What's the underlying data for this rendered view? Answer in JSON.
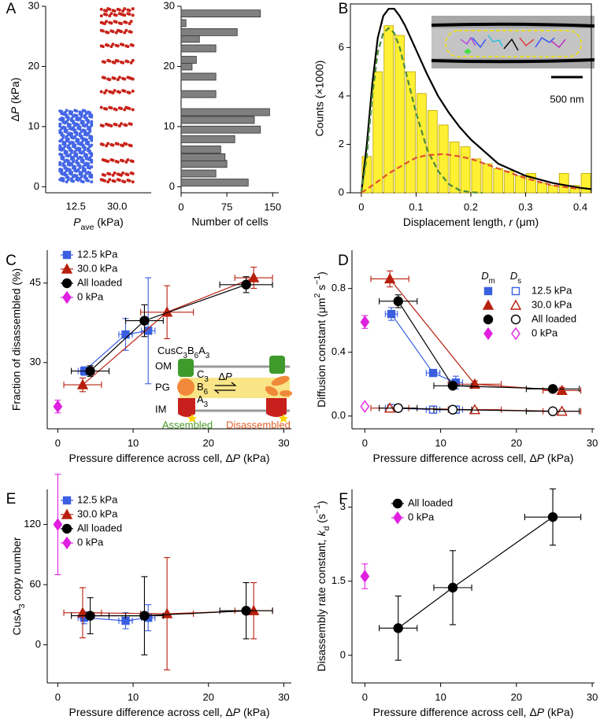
{
  "chart_data": [
    {
      "type": "scatter",
      "panel": "A",
      "ylabel": [
        {
          "text": "Δ"
        },
        {
          "text": "P",
          "style": "i"
        },
        {
          "text": " (kPa)"
        }
      ],
      "xlabel": [
        {
          "text": "P",
          "style": "i"
        },
        {
          "text": "ave",
          "style": "sub"
        },
        {
          "text": " (kPa)"
        }
      ],
      "categories": [
        "12.5",
        "30.0"
      ],
      "series": [
        {
          "color": "#4466e6",
          "values": [
            1,
            1.5,
            2,
            2.5,
            3,
            3.5,
            4,
            4.5,
            5,
            5.5,
            6,
            6.5,
            7,
            7.5,
            8,
            8.5,
            9,
            9.5,
            10,
            10.5,
            11,
            11.5,
            12,
            12.5
          ]
        },
        {
          "color": "#c8231a",
          "values": [
            1.0,
            2.1,
            4.3,
            7.0,
            10.3,
            13.0,
            15.8,
            18.0,
            20.8,
            23.5,
            25.8,
            27.3,
            28.6,
            29.4
          ]
        }
      ],
      "ylim": [
        -1,
        30
      ],
      "yticks": [
        0,
        10,
        20,
        30
      ]
    },
    {
      "type": "bar",
      "orientation": "horizontal",
      "xlabel": "Number of cells",
      "y": [
        0.7,
        2.2,
        3.8,
        4.9,
        6.2,
        7.9,
        9.5,
        11.1,
        12.4,
        15.4,
        18.3,
        20.0,
        21.1,
        23.0,
        24.6,
        25.7,
        27.2,
        28.8
      ],
      "values": [
        110,
        57,
        75,
        72,
        65,
        88,
        130,
        120,
        145,
        57,
        57,
        18,
        25,
        57,
        30,
        92,
        8,
        130
      ],
      "color": "#808080",
      "xlim": [
        0,
        160
      ],
      "xticks": [
        0,
        75,
        150
      ],
      "ylim": [
        -1,
        30
      ],
      "yticks": [
        0,
        10,
        20,
        30
      ]
    },
    {
      "type": "histogram",
      "panel": "B",
      "ylabel": "Counts (×1000)",
      "xlabel": [
        {
          "text": "Displacement length, "
        },
        {
          "text": "r",
          "style": "i"
        },
        {
          "text": " (μm)"
        }
      ],
      "bins": [
        0,
        0.02,
        0.04,
        0.06,
        0.08,
        0.1,
        0.12,
        0.14,
        0.16,
        0.18,
        0.2,
        0.22,
        0.24,
        0.26,
        0.28,
        0.3,
        0.32,
        0.34,
        0.36,
        0.38,
        0.4,
        0.42
      ],
      "values": [
        1.5,
        5.0,
        6.9,
        6.5,
        5.0,
        4.1,
        3.4,
        2.8,
        2.1,
        1.9,
        1.4,
        1.2,
        1.0,
        0.9,
        0.7,
        0.8,
        0.4,
        0.3,
        0.8,
        0.3,
        0.8
      ],
      "color": "#fff033",
      "lines": [
        {
          "color": "#000000",
          "dash": false,
          "x": [
            0,
            0.01,
            0.02,
            0.03,
            0.04,
            0.05,
            0.06,
            0.07,
            0.08,
            0.1,
            0.12,
            0.14,
            0.16,
            0.18,
            0.2,
            0.22,
            0.25,
            0.3,
            0.35,
            0.4,
            0.42
          ],
          "values": [
            0,
            2.0,
            4.5,
            6.4,
            7.3,
            7.6,
            7.6,
            7.3,
            6.9,
            5.9,
            4.9,
            4.0,
            3.3,
            2.7,
            2.2,
            1.8,
            1.2,
            0.7,
            0.4,
            0.2,
            0.15
          ]
        },
        {
          "color": "#4a8a3a",
          "dash": true,
          "x": [
            0,
            0.01,
            0.02,
            0.03,
            0.04,
            0.05,
            0.06,
            0.07,
            0.08,
            0.1,
            0.12,
            0.14,
            0.16,
            0.18,
            0.2,
            0.22
          ],
          "values": [
            0,
            1.5,
            4.0,
            5.8,
            6.6,
            6.8,
            6.6,
            6.0,
            5.1,
            3.3,
            1.8,
            0.9,
            0.35,
            0.1,
            0.02,
            0
          ]
        },
        {
          "color": "#e05030",
          "dash": true,
          "x": [
            0,
            0.02,
            0.05,
            0.08,
            0.1,
            0.12,
            0.15,
            0.18,
            0.2,
            0.25,
            0.3,
            0.35,
            0.4
          ],
          "values": [
            0,
            0.3,
            0.8,
            1.2,
            1.45,
            1.55,
            1.6,
            1.5,
            1.4,
            1.0,
            0.6,
            0.3,
            0.15
          ]
        }
      ],
      "scale_label": "500 nm",
      "xlim": [
        -0.02,
        0.42
      ],
      "xticks": [
        0,
        0.1,
        0.2,
        0.3,
        0.4
      ],
      "ylim": [
        0,
        7.8
      ],
      "yticks": [
        0,
        2,
        4,
        6
      ]
    },
    {
      "type": "errorbar",
      "panel": "C",
      "ylabel": "Fraction of disassembled (%)",
      "xlabel": [
        {
          "text": "Pressure difference across cell, Δ"
        },
        {
          "text": "P",
          "style": "i"
        },
        {
          "text": " (kPa)"
        }
      ],
      "legend": "upper left",
      "series": [
        {
          "name": "12.5 kPa",
          "color": "#3a5fe0",
          "marker": "square",
          "x": [
            3.5,
            9,
            12
          ],
          "values": [
            28.4,
            35.3,
            36
          ],
          "xerr": [
            0.8,
            0.9,
            0.9
          ],
          "yerr": [
            0.8,
            3,
            10
          ]
        },
        {
          "name": "30.0 kPa",
          "color": "#b8200e",
          "marker": "triangle",
          "x": [
            3.3,
            14.5,
            26
          ],
          "values": [
            25.8,
            39.5,
            46
          ],
          "xerr": [
            2.5,
            3.5,
            2.5
          ],
          "yerr": [
            1.3,
            5,
            2
          ]
        },
        {
          "name": "All loaded",
          "color": "#000000",
          "marker": "circle",
          "x": [
            4.3,
            11.5,
            25
          ],
          "values": [
            28.4,
            37.9,
            44.7
          ],
          "xerr": [
            2.5,
            2.5,
            3.5
          ],
          "yerr": [
            1,
            3,
            1.5
          ]
        },
        {
          "name": "0 kPa",
          "color": "#e020e0",
          "marker": "diamond",
          "x": [
            0
          ],
          "values": [
            21.7
          ],
          "yerr": [
            1.2
          ]
        }
      ],
      "inset": {
        "title": [
          {
            "text": "CusC"
          },
          {
            "text": "3",
            "style": "sub"
          },
          {
            "text": "B"
          },
          {
            "text": "6",
            "style": "sub"
          },
          {
            "text": "A"
          },
          {
            "text": "3",
            "style": "sub"
          }
        ],
        "layers": [
          "OM",
          "PG",
          "IM"
        ],
        "components": [
          [
            {
              "text": "C"
            },
            {
              "text": "3",
              "style": "sub"
            }
          ],
          [
            {
              "text": "B"
            },
            {
              "text": "6",
              "style": "sub"
            }
          ],
          [
            {
              "text": "A"
            },
            {
              "text": "3",
              "style": "sub"
            }
          ]
        ],
        "force": [
          {
            "text": "Δ"
          },
          {
            "text": "P",
            "style": "i"
          }
        ],
        "states": [
          "Assembled",
          "Disassembled"
        ]
      },
      "xlim": [
        -1.4,
        31
      ],
      "xticks": [
        0,
        10,
        20,
        30
      ],
      "ylim": [
        17.5,
        51.2
      ],
      "yticks": [
        30,
        45
      ]
    },
    {
      "type": "errorbar",
      "panel": "D",
      "ylabel": [
        {
          "text": "Diffusion constant (μm"
        },
        {
          "text": "2",
          "style": "sup"
        },
        {
          "text": " s"
        },
        {
          "text": "−1",
          "style": "sup"
        },
        {
          "text": ")"
        }
      ],
      "xlabel": [
        {
          "text": "Pressure difference across cell, Δ"
        },
        {
          "text": "P",
          "style": "i"
        },
        {
          "text": " (kPa)"
        }
      ],
      "legend": "upper right",
      "legend_headers": [
        [
          {
            "text": "D",
            "style": "i"
          },
          {
            "text": "m",
            "style": "sub"
          }
        ],
        [
          {
            "text": "D",
            "style": "i"
          },
          {
            "text": "s",
            "style": "sub"
          }
        ]
      ],
      "series": [
        {
          "name": "12.5 kPa",
          "color": "#3a5fe0",
          "marker": "square",
          "filled": true,
          "x": [
            3.5,
            9,
            12
          ],
          "values": [
            0.64,
            0.27,
            0.21
          ],
          "xerr": [
            0.8,
            0.9,
            0.9
          ],
          "yerr": [
            0.04,
            0.02,
            0.04
          ]
        },
        {
          "name": "30.0 kPa",
          "color": "#b8200e",
          "marker": "triangle",
          "filled": true,
          "x": [
            3.3,
            14.5,
            26
          ],
          "values": [
            0.86,
            0.2,
            0.16
          ],
          "xerr": [
            2.5,
            3.5,
            2.5
          ],
          "yerr": [
            0.05,
            0.02,
            0.02
          ]
        },
        {
          "name": "All loaded",
          "color": "#000000",
          "marker": "circle",
          "filled": true,
          "x": [
            4.4,
            11.6,
            24.8
          ],
          "values": [
            0.72,
            0.19,
            0.17
          ],
          "xerr": [
            2.5,
            2.5,
            3.5
          ],
          "yerr": [
            0.04,
            0.02,
            0.01
          ]
        },
        {
          "name": "0 kPa",
          "color": "#e020e0",
          "marker": "diamond",
          "filled": true,
          "x": [
            0
          ],
          "values": [
            0.59
          ],
          "yerr": [
            0.04
          ]
        },
        {
          "color": "#3a5fe0",
          "marker": "square",
          "filled": false,
          "x": [
            3.5,
            9,
            12
          ],
          "values": [
            0.05,
            0.04,
            0.04
          ],
          "xerr": [
            0.8,
            0.9,
            0.9
          ],
          "yerr": [
            0.01,
            0.01,
            0.01
          ]
        },
        {
          "color": "#b8200e",
          "marker": "triangle",
          "filled": false,
          "x": [
            3.3,
            14.5,
            26
          ],
          "values": [
            0.05,
            0.04,
            0.03
          ],
          "xerr": [
            2.5,
            3.5,
            2.5
          ],
          "yerr": [
            0.01,
            0.01,
            0.01
          ]
        },
        {
          "color": "#000000",
          "marker": "circle",
          "filled": false,
          "x": [
            4.4,
            11.6,
            24.8
          ],
          "values": [
            0.05,
            0.04,
            0.03
          ],
          "xerr": [
            2.5,
            2.5,
            3.5
          ],
          "yerr": [
            0.01,
            0.01,
            0.01
          ]
        },
        {
          "color": "#e020e0",
          "marker": "diamond",
          "filled": false,
          "x": [
            0
          ],
          "values": [
            0.06
          ],
          "yerr": [
            0.01
          ]
        }
      ],
      "xlim": [
        -1.7,
        30.3
      ],
      "xticks": [
        0,
        10,
        20,
        30
      ],
      "ylim": [
        -0.08,
        1.04
      ],
      "yticks": [
        {
          "value": 0,
          "label": "0.0"
        },
        0.4,
        0.8
      ]
    },
    {
      "type": "errorbar",
      "panel": "E",
      "ylabel": [
        {
          "text": "CusA"
        },
        {
          "text": "3",
          "style": "sub"
        },
        {
          "text": " copy number"
        }
      ],
      "xlabel": [
        {
          "text": "Pressure difference across cell, Δ"
        },
        {
          "text": "P",
          "style": "i"
        },
        {
          "text": " (kPa)"
        }
      ],
      "legend": "upper left",
      "series": [
        {
          "name": "12.5 kPa",
          "color": "#3a5fe0",
          "marker": "square",
          "x": [
            3.5,
            9,
            12
          ],
          "values": [
            27,
            24,
            27
          ],
          "xerr": [
            0.8,
            0.9,
            0.9
          ],
          "yerr": [
            6,
            8,
            13
          ]
        },
        {
          "name": "30.0 kPa",
          "color": "#b8200e",
          "marker": "triangle",
          "x": [
            3.3,
            14.5,
            26
          ],
          "values": [
            32,
            31,
            34
          ],
          "xerr": [
            2.5,
            3.5,
            2.5
          ],
          "yerr": [
            25,
            56,
            28
          ]
        },
        {
          "name": "All loaded",
          "color": "#000000",
          "marker": "circle",
          "x": [
            4.3,
            11.5,
            25
          ],
          "values": [
            29,
            29,
            34
          ],
          "xerr": [
            2.5,
            2.5,
            3.5
          ],
          "yerr": [
            18,
            39,
            28
          ]
        },
        {
          "name": "0 kPa",
          "color": "#e020e0",
          "marker": "diamond",
          "x": [
            0
          ],
          "values": [
            120
          ],
          "yerr": [
            50
          ]
        }
      ],
      "xlim": [
        -1.4,
        31
      ],
      "xticks": [
        0,
        10,
        20,
        30
      ],
      "ylim": [
        -38,
        155
      ],
      "yticks": [
        0,
        60,
        120
      ]
    },
    {
      "type": "errorbar",
      "panel": "F",
      "ylabel": [
        {
          "text": "Disassembly rate constant, "
        },
        {
          "text": "k",
          "style": "i"
        },
        {
          "text": "d",
          "style": "sub"
        },
        {
          "text": " (s"
        },
        {
          "text": "−1",
          "style": "sup"
        },
        {
          "text": ")"
        }
      ],
      "xlabel": [
        {
          "text": "Pressure difference across cell, Δ"
        },
        {
          "text": "P",
          "style": "i"
        },
        {
          "text": " (kPa)"
        }
      ],
      "legend": "upper left",
      "series": [
        {
          "name": "All loaded",
          "color": "#000000",
          "marker": "circle",
          "x": [
            4.4,
            11.6,
            24.8
          ],
          "values": [
            0.55,
            1.37,
            2.8
          ],
          "xerr": [
            2.5,
            2.5,
            3.7
          ],
          "yerr": [
            0.65,
            0.75,
            0.57
          ]
        },
        {
          "name": "0 kPa",
          "color": "#e020e0",
          "marker": "diamond",
          "x": [
            0
          ],
          "values": [
            1.6
          ],
          "yerr": [
            0.25
          ]
        }
      ],
      "xlim": [
        -1.7,
        30.3
      ],
      "xticks": [
        0,
        10,
        20,
        30
      ],
      "ylim": [
        -0.56,
        3.36
      ],
      "yticks": [
        0,
        1.5,
        3
      ]
    }
  ]
}
